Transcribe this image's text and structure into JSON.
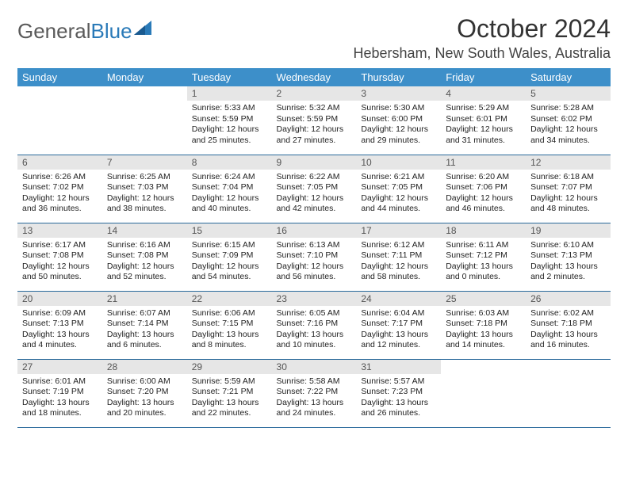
{
  "logo": {
    "text1": "General",
    "text2": "Blue"
  },
  "title": {
    "month": "October 2024",
    "location": "Hebersham, New South Wales, Australia"
  },
  "colors": {
    "header_bg": "#3d8fc9",
    "header_text": "#ffffff",
    "daynum_bg": "#e6e6e6",
    "row_divider": "#2a6a9b",
    "logo_gray": "#5a5a5a",
    "logo_blue": "#2a7ab8"
  },
  "dayHeaders": [
    "Sunday",
    "Monday",
    "Tuesday",
    "Wednesday",
    "Thursday",
    "Friday",
    "Saturday"
  ],
  "weeks": [
    [
      null,
      null,
      {
        "n": "1",
        "sr": "5:33 AM",
        "ss": "5:59 PM",
        "dl": "12 hours and 25 minutes."
      },
      {
        "n": "2",
        "sr": "5:32 AM",
        "ss": "5:59 PM",
        "dl": "12 hours and 27 minutes."
      },
      {
        "n": "3",
        "sr": "5:30 AM",
        "ss": "6:00 PM",
        "dl": "12 hours and 29 minutes."
      },
      {
        "n": "4",
        "sr": "5:29 AM",
        "ss": "6:01 PM",
        "dl": "12 hours and 31 minutes."
      },
      {
        "n": "5",
        "sr": "5:28 AM",
        "ss": "6:02 PM",
        "dl": "12 hours and 34 minutes."
      }
    ],
    [
      {
        "n": "6",
        "sr": "6:26 AM",
        "ss": "7:02 PM",
        "dl": "12 hours and 36 minutes."
      },
      {
        "n": "7",
        "sr": "6:25 AM",
        "ss": "7:03 PM",
        "dl": "12 hours and 38 minutes."
      },
      {
        "n": "8",
        "sr": "6:24 AM",
        "ss": "7:04 PM",
        "dl": "12 hours and 40 minutes."
      },
      {
        "n": "9",
        "sr": "6:22 AM",
        "ss": "7:05 PM",
        "dl": "12 hours and 42 minutes."
      },
      {
        "n": "10",
        "sr": "6:21 AM",
        "ss": "7:05 PM",
        "dl": "12 hours and 44 minutes."
      },
      {
        "n": "11",
        "sr": "6:20 AM",
        "ss": "7:06 PM",
        "dl": "12 hours and 46 minutes."
      },
      {
        "n": "12",
        "sr": "6:18 AM",
        "ss": "7:07 PM",
        "dl": "12 hours and 48 minutes."
      }
    ],
    [
      {
        "n": "13",
        "sr": "6:17 AM",
        "ss": "7:08 PM",
        "dl": "12 hours and 50 minutes."
      },
      {
        "n": "14",
        "sr": "6:16 AM",
        "ss": "7:08 PM",
        "dl": "12 hours and 52 minutes."
      },
      {
        "n": "15",
        "sr": "6:15 AM",
        "ss": "7:09 PM",
        "dl": "12 hours and 54 minutes."
      },
      {
        "n": "16",
        "sr": "6:13 AM",
        "ss": "7:10 PM",
        "dl": "12 hours and 56 minutes."
      },
      {
        "n": "17",
        "sr": "6:12 AM",
        "ss": "7:11 PM",
        "dl": "12 hours and 58 minutes."
      },
      {
        "n": "18",
        "sr": "6:11 AM",
        "ss": "7:12 PM",
        "dl": "13 hours and 0 minutes."
      },
      {
        "n": "19",
        "sr": "6:10 AM",
        "ss": "7:13 PM",
        "dl": "13 hours and 2 minutes."
      }
    ],
    [
      {
        "n": "20",
        "sr": "6:09 AM",
        "ss": "7:13 PM",
        "dl": "13 hours and 4 minutes."
      },
      {
        "n": "21",
        "sr": "6:07 AM",
        "ss": "7:14 PM",
        "dl": "13 hours and 6 minutes."
      },
      {
        "n": "22",
        "sr": "6:06 AM",
        "ss": "7:15 PM",
        "dl": "13 hours and 8 minutes."
      },
      {
        "n": "23",
        "sr": "6:05 AM",
        "ss": "7:16 PM",
        "dl": "13 hours and 10 minutes."
      },
      {
        "n": "24",
        "sr": "6:04 AM",
        "ss": "7:17 PM",
        "dl": "13 hours and 12 minutes."
      },
      {
        "n": "25",
        "sr": "6:03 AM",
        "ss": "7:18 PM",
        "dl": "13 hours and 14 minutes."
      },
      {
        "n": "26",
        "sr": "6:02 AM",
        "ss": "7:18 PM",
        "dl": "13 hours and 16 minutes."
      }
    ],
    [
      {
        "n": "27",
        "sr": "6:01 AM",
        "ss": "7:19 PM",
        "dl": "13 hours and 18 minutes."
      },
      {
        "n": "28",
        "sr": "6:00 AM",
        "ss": "7:20 PM",
        "dl": "13 hours and 20 minutes."
      },
      {
        "n": "29",
        "sr": "5:59 AM",
        "ss": "7:21 PM",
        "dl": "13 hours and 22 minutes."
      },
      {
        "n": "30",
        "sr": "5:58 AM",
        "ss": "7:22 PM",
        "dl": "13 hours and 24 minutes."
      },
      {
        "n": "31",
        "sr": "5:57 AM",
        "ss": "7:23 PM",
        "dl": "13 hours and 26 minutes."
      },
      null,
      null
    ]
  ],
  "labels": {
    "sunrise": "Sunrise:",
    "sunset": "Sunset:",
    "daylight": "Daylight:"
  }
}
